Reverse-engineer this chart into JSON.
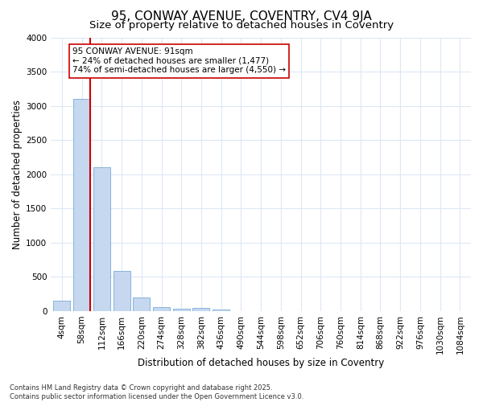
{
  "title1": "95, CONWAY AVENUE, COVENTRY, CV4 9JA",
  "title2": "Size of property relative to detached houses in Coventry",
  "xlabel": "Distribution of detached houses by size in Coventry",
  "ylabel": "Number of detached properties",
  "categories": [
    "4sqm",
    "58sqm",
    "112sqm",
    "166sqm",
    "220sqm",
    "274sqm",
    "328sqm",
    "382sqm",
    "436sqm",
    "490sqm",
    "544sqm",
    "598sqm",
    "652sqm",
    "706sqm",
    "760sqm",
    "814sqm",
    "868sqm",
    "922sqm",
    "976sqm",
    "1030sqm",
    "1084sqm"
  ],
  "values": [
    150,
    3100,
    2100,
    580,
    200,
    60,
    30,
    40,
    20,
    0,
    0,
    0,
    0,
    0,
    0,
    0,
    0,
    0,
    0,
    0,
    0
  ],
  "bar_color": "#c5d8f0",
  "bar_edge_color": "#7aaad4",
  "vline_x_index": 1,
  "vline_color": "#cc0000",
  "annotation_text": "95 CONWAY AVENUE: 91sqm\n← 24% of detached houses are smaller (1,477)\n74% of semi-detached houses are larger (4,550) →",
  "annotation_box_color": "#cc0000",
  "ylim": [
    0,
    4000
  ],
  "yticks": [
    0,
    500,
    1000,
    1500,
    2000,
    2500,
    3000,
    3500,
    4000
  ],
  "footer": "Contains HM Land Registry data © Crown copyright and database right 2025.\nContains public sector information licensed under the Open Government Licence v3.0.",
  "bg_color": "#ffffff",
  "grid_color": "#dce8f5",
  "title_fontsize": 11,
  "subtitle_fontsize": 9.5,
  "axis_label_fontsize": 8.5,
  "tick_fontsize": 7.5,
  "annotation_fontsize": 7.5,
  "footer_fontsize": 6.0
}
